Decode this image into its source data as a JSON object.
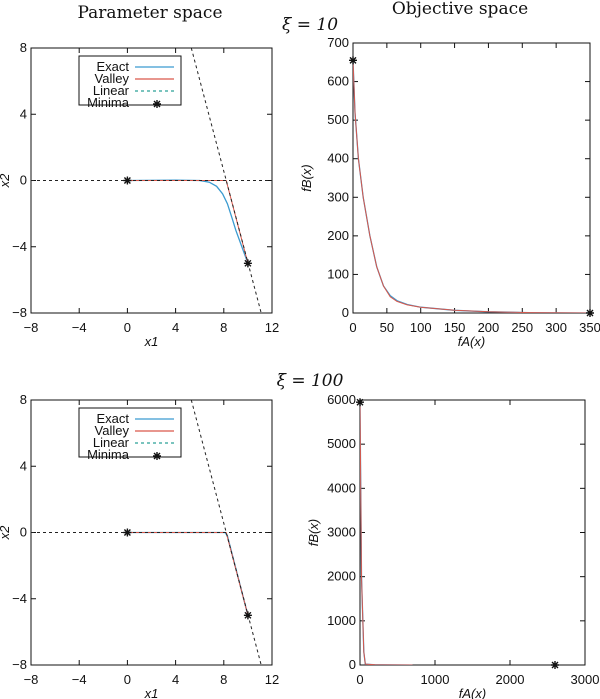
{
  "headers": {
    "left": "Parameter space",
    "right": "Objective space"
  },
  "colors": {
    "exact": "#3a9ad0",
    "valley": "#d9574a",
    "linear": "#2aa198",
    "dashed": "#222222",
    "minima": "#111111"
  },
  "chart_data": [
    {
      "type": "line",
      "row_title": "ξ = 10",
      "xlabel": "x1",
      "ylabel": "x2",
      "xlim": [
        -8,
        12
      ],
      "ylim": [
        -8,
        8
      ],
      "xticks": [
        -8,
        -4,
        0,
        4,
        8,
        12
      ],
      "yticks": [
        -8,
        -4,
        0,
        4,
        8
      ],
      "legend": {
        "placement": "top-left",
        "entries": [
          "Exact",
          "Valley",
          "Linear",
          "Minima"
        ]
      },
      "series": [
        {
          "name": "Exact",
          "points": [
            [
              0,
              0
            ],
            [
              4,
              0.02
            ],
            [
              6,
              0
            ],
            [
              6.8,
              -0.1
            ],
            [
              7.4,
              -0.35
            ],
            [
              7.9,
              -0.8
            ],
            [
              8.3,
              -1.4
            ],
            [
              8.7,
              -2.3
            ],
            [
              9,
              -3.0
            ],
            [
              10,
              -5
            ]
          ]
        },
        {
          "name": "Valley",
          "points": [
            [
              0,
              0
            ],
            [
              8.2,
              0
            ],
            [
              10,
              -5
            ]
          ]
        },
        {
          "name": "Linear",
          "points": [
            [
              5.3,
              8
            ],
            [
              11.1,
              -8
            ]
          ]
        },
        {
          "name": "axis-zero",
          "points": [
            [
              -8,
              0
            ],
            [
              12,
              0
            ]
          ]
        }
      ],
      "minima": [
        [
          0,
          0
        ],
        [
          10,
          -5
        ]
      ]
    },
    {
      "type": "line",
      "xlabel": "fA(x)",
      "ylabel": "fB(x)",
      "xlim": [
        0,
        350
      ],
      "ylim": [
        0,
        700
      ],
      "xticks": [
        0,
        50,
        100,
        150,
        200,
        250,
        300,
        350
      ],
      "yticks": [
        0,
        100,
        200,
        300,
        400,
        500,
        600,
        700
      ],
      "series": [
        {
          "name": "Exact",
          "points": [
            [
              0,
              655
            ],
            [
              3,
              520
            ],
            [
              8,
              400
            ],
            [
              15,
              300
            ],
            [
              25,
              200
            ],
            [
              35,
              120
            ],
            [
              45,
              70
            ],
            [
              55,
              45
            ],
            [
              65,
              32
            ],
            [
              80,
              22
            ],
            [
              100,
              15
            ],
            [
              150,
              7
            ],
            [
              200,
              3
            ],
            [
              260,
              1
            ],
            [
              350,
              0
            ]
          ]
        },
        {
          "name": "Valley",
          "points": [
            [
              0,
              655
            ],
            [
              3,
              520
            ],
            [
              8,
              400
            ],
            [
              15,
              300
            ],
            [
              25,
              200
            ],
            [
              35,
              120
            ],
            [
              45,
              70
            ],
            [
              55,
              42
            ],
            [
              65,
              30
            ],
            [
              80,
              21
            ],
            [
              100,
              15
            ],
            [
              150,
              7
            ],
            [
              200,
              3
            ],
            [
              260,
              1
            ],
            [
              350,
              0
            ]
          ]
        }
      ],
      "minima": [
        [
          0,
          655
        ],
        [
          350,
          0
        ]
      ]
    },
    {
      "type": "line",
      "row_title": "ξ = 100",
      "xlabel": "x1",
      "ylabel": "x2",
      "xlim": [
        -8,
        12
      ],
      "ylim": [
        -8,
        8
      ],
      "xticks": [
        -8,
        -4,
        0,
        4,
        8,
        12
      ],
      "yticks": [
        -8,
        -4,
        0,
        4,
        8
      ],
      "legend": {
        "placement": "top-left",
        "entries": [
          "Exact",
          "Valley",
          "Linear",
          "Minima"
        ]
      },
      "series": [
        {
          "name": "Exact",
          "points": [
            [
              0,
              0
            ],
            [
              8.1,
              0
            ],
            [
              8.3,
              -0.2
            ],
            [
              10,
              -5
            ]
          ]
        },
        {
          "name": "Valley",
          "points": [
            [
              0,
              0
            ],
            [
              8.2,
              0
            ],
            [
              10,
              -5
            ]
          ]
        },
        {
          "name": "Linear",
          "points": [
            [
              5.3,
              8
            ],
            [
              11.1,
              -8
            ]
          ]
        },
        {
          "name": "axis-zero",
          "points": [
            [
              -8,
              0
            ],
            [
              12,
              0
            ]
          ]
        }
      ],
      "minima": [
        [
          0,
          0
        ],
        [
          10,
          -5
        ]
      ]
    },
    {
      "type": "line",
      "xlabel": "fA(x)",
      "ylabel": "fB(x)",
      "xlim": [
        0,
        3000
      ],
      "ylim": [
        0,
        6000
      ],
      "xticks": [
        0,
        1000,
        2000,
        3000
      ],
      "yticks": [
        0,
        1000,
        2000,
        3000,
        4000,
        5000,
        6000
      ],
      "series": [
        {
          "name": "Exact",
          "points": [
            [
              0,
              5950
            ],
            [
              20,
              2000
            ],
            [
              50,
              300
            ],
            [
              70,
              20
            ],
            [
              200,
              5
            ],
            [
              700,
              0
            ]
          ]
        },
        {
          "name": "Valley",
          "points": [
            [
              0,
              5950
            ],
            [
              20,
              2000
            ],
            [
              50,
              300
            ],
            [
              70,
              20
            ],
            [
              200,
              5
            ],
            [
              700,
              0
            ]
          ]
        }
      ],
      "minima": [
        [
          0,
          5950
        ],
        [
          2600,
          0
        ]
      ]
    }
  ]
}
